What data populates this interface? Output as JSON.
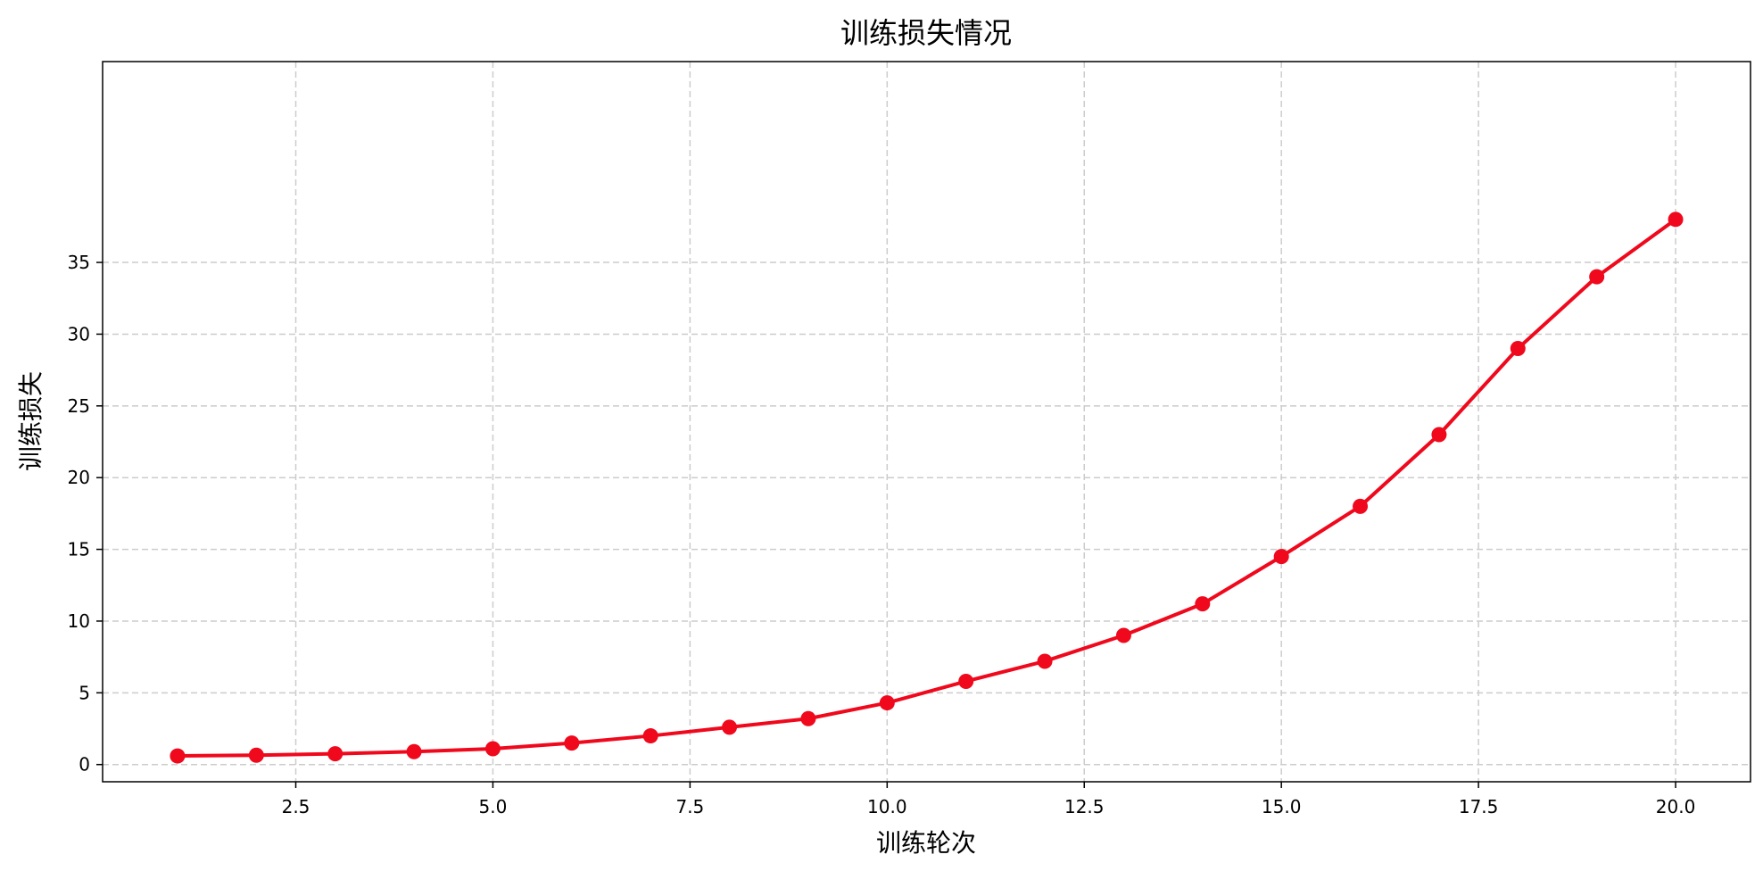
{
  "chart_data": {
    "type": "line",
    "title": "训练损失情况",
    "xlabel": "训练轮次",
    "ylabel": "训练损失",
    "x": [
      1,
      2,
      3,
      4,
      5,
      6,
      7,
      8,
      9,
      10,
      11,
      12,
      13,
      14,
      15,
      16,
      17,
      18,
      19,
      20
    ],
    "series": [
      {
        "values": [
          0.6,
          0.65,
          0.75,
          0.9,
          1.1,
          1.5,
          2.0,
          2.6,
          3.2,
          4.3,
          5.8,
          7.2,
          9.0,
          11.2,
          14.5,
          18.0,
          23.0,
          29.0,
          34.0,
          38.0
        ],
        "color": "#f0081c",
        "marker": "circle"
      }
    ],
    "xlim": [
      0.05,
      20.95
    ],
    "ylim": [
      -1.2,
      49.0
    ],
    "xticks": [
      2.5,
      5.0,
      7.5,
      10.0,
      12.5,
      15.0,
      17.5,
      20.0
    ],
    "xtick_labels": [
      "2.5",
      "5.0",
      "7.5",
      "10.0",
      "12.5",
      "15.0",
      "17.5",
      "20.0"
    ],
    "yticks": [
      0,
      5,
      10,
      15,
      20,
      25,
      30,
      35
    ],
    "ytick_labels": [
      "0",
      "5",
      "10",
      "15",
      "20",
      "25",
      "30",
      "35"
    ],
    "grid": true,
    "grid_style": "dashed",
    "grid_color": "#cccccc",
    "legend": "none"
  }
}
